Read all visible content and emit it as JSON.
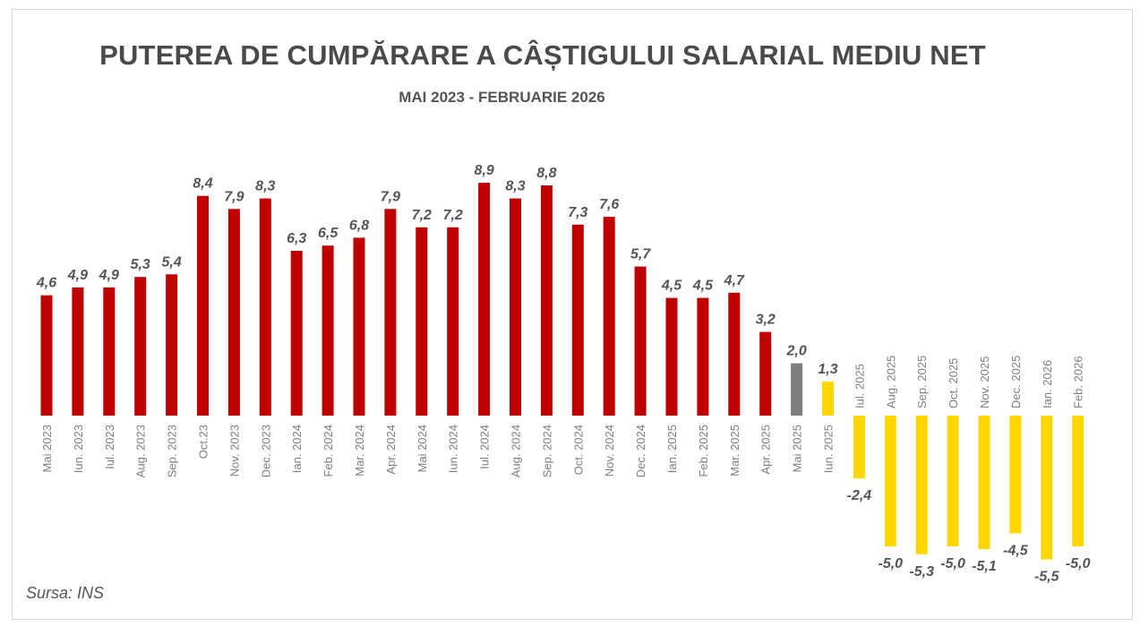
{
  "title": "PUTEREA DE CUMPĂRARE A CÂȘTIGULUI SALARIAL MEDIU NET",
  "subtitle": "MAI 2023 - FEBRUARIE 2026",
  "source": "Sursa: INS",
  "colors": {
    "red": "#c00000",
    "gray": "#7f7f7f",
    "yellow": "#ffd600",
    "title": "#4a4a4a",
    "label": "#555555",
    "tick": "#7f7f7f"
  },
  "chart_data": {
    "type": "bar",
    "title": "PUTEREA DE CUMPĂRARE A CÂȘTIGULUI SALARIAL MEDIU NET",
    "subtitle": "MAI 2023 - FEBRUARIE 2026",
    "grid": false,
    "legend": "none",
    "categories": [
      "Mai 2023",
      "Iun. 2023",
      "Iul. 2023",
      "Aug. 2023",
      "Sep. 2023",
      "Oct.23",
      "Nov. 2023",
      "Dec. 2023",
      "Ian. 2024",
      "Feb. 2024",
      "Mar. 2024",
      "Apr. 2024",
      "Mai 2024",
      "Iun. 2024",
      "Iul. 2024",
      "Aug. 2024",
      "Sep. 2024",
      "Oct. 2024",
      "Nov. 2024",
      "Dec. 2024",
      "Ian. 2025",
      "Feb. 2025",
      "Mar. 2025",
      "Apr. 2025",
      "Mai 2025",
      "Iun. 2025",
      "Iul. 2025",
      "Aug. 2025",
      "Sep. 2025",
      "Oct. 2025",
      "Nov. 2025",
      "Dec. 2025",
      "Ian. 2026",
      "Feb. 2026"
    ],
    "values": [
      4.6,
      4.9,
      4.9,
      5.3,
      5.4,
      8.4,
      7.9,
      8.3,
      6.3,
      6.5,
      6.8,
      7.9,
      7.2,
      7.2,
      8.9,
      8.3,
      8.8,
      7.3,
      7.6,
      5.7,
      4.5,
      4.5,
      4.7,
      3.2,
      2.0,
      1.3,
      -2.4,
      -5.0,
      -5.3,
      -5.0,
      -5.1,
      -4.5,
      -5.5,
      -5.0
    ],
    "value_labels": [
      "4,6",
      "4,9",
      "4,9",
      "5,3",
      "5,4",
      "8,4",
      "7,9",
      "8,3",
      "6,3",
      "6,5",
      "6,8",
      "7,9",
      "7,2",
      "7,2",
      "8,9",
      "8,3",
      "8,8",
      "7,3",
      "7,6",
      "5,7",
      "4,5",
      "4,5",
      "4,7",
      "3,2",
      "2,0",
      "1,3",
      "-2,4",
      "-5,0",
      "-5,3",
      "-5,0",
      "-5,1",
      "-4,5",
      "-5,5",
      "-5,0"
    ],
    "bar_colors": [
      "#c00000",
      "#c00000",
      "#c00000",
      "#c00000",
      "#c00000",
      "#c00000",
      "#c00000",
      "#c00000",
      "#c00000",
      "#c00000",
      "#c00000",
      "#c00000",
      "#c00000",
      "#c00000",
      "#c00000",
      "#c00000",
      "#c00000",
      "#c00000",
      "#c00000",
      "#c00000",
      "#c00000",
      "#c00000",
      "#c00000",
      "#c00000",
      "#7f7f7f",
      "#ffd600",
      "#ffd600",
      "#ffd600",
      "#ffd600",
      "#ffd600",
      "#ffd600",
      "#ffd600",
      "#ffd600",
      "#ffd600"
    ]
  }
}
